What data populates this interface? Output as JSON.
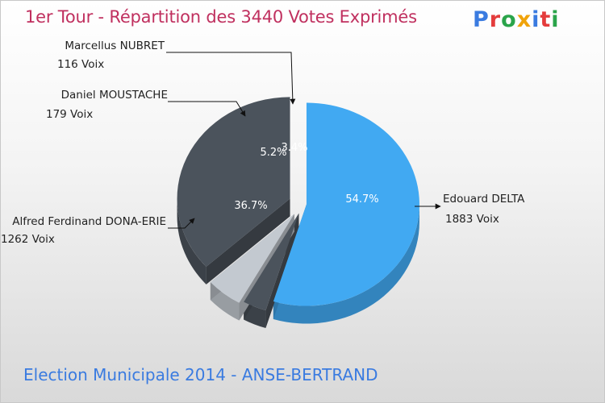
{
  "title": "1er Tour - Répartition des 3440 Votes Exprimés",
  "footer": "Election Municipale 2014 - ANSE-BERTRAND",
  "logo": {
    "letters": [
      "P",
      "r",
      "o",
      "x",
      "i",
      "t",
      "i"
    ],
    "colors": [
      "#3a7be0",
      "#e43c3c",
      "#2aa44a",
      "#f0a30a",
      "#3a7be0",
      "#e43c3c",
      "#2aa44a"
    ]
  },
  "chart_data": {
    "type": "pie",
    "title": "1er Tour - Répartition des 3440 Votes Exprimés",
    "total_votes": 3440,
    "slices": [
      {
        "name": "Edouard DELTA",
        "votes": 1883,
        "votes_label": "1883 Voix",
        "percent": 54.7,
        "percent_label": "54.7%",
        "color": "#41a9f2"
      },
      {
        "name": "Marcellus NUBRET",
        "votes": 116,
        "votes_label": "116 Voix",
        "percent": 3.4,
        "percent_label": "3.4%",
        "color": "#4b535c"
      },
      {
        "name": "Daniel MOUSTACHE",
        "votes": 179,
        "votes_label": "179 Voix",
        "percent": 5.2,
        "percent_label": "5.2%",
        "color": "#c3c9d0"
      },
      {
        "name": "Alfred Ferdinand DONA-ERIE",
        "votes": 1262,
        "votes_label": "1262 Voix",
        "percent": 36.7,
        "percent_label": "36.7%",
        "color": "#4b535c"
      }
    ]
  }
}
